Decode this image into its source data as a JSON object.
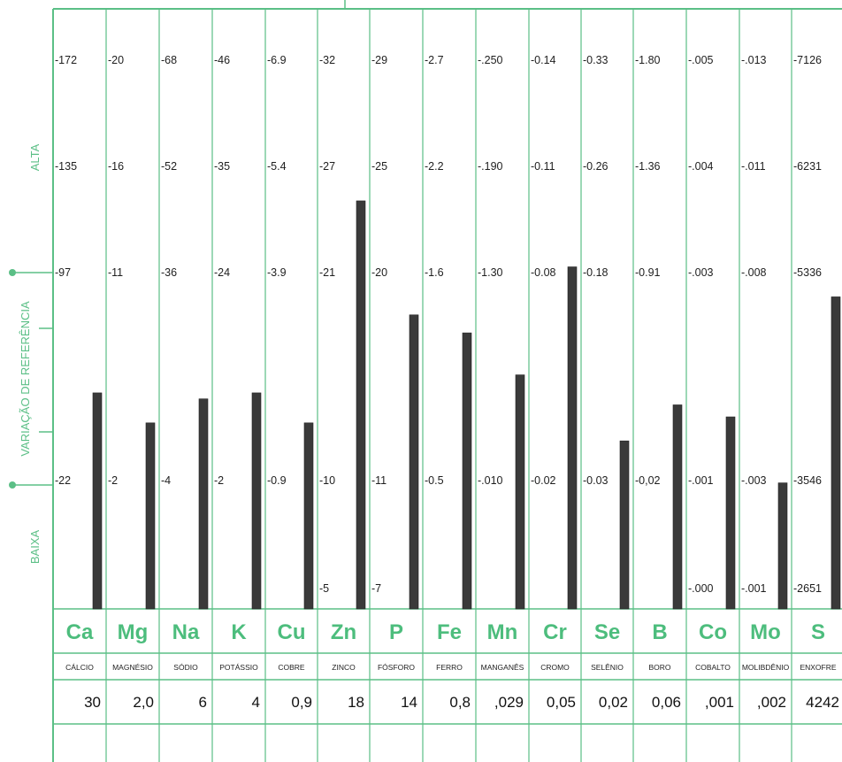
{
  "side_labels": {
    "alta": "ALTA",
    "reference": "VARIAÇÃO DE REFERÊNCIA",
    "baixa": "BAIXA"
  },
  "colors": {
    "grid_green": "#5bbf86",
    "symbol_green": "#4dbd7d",
    "bar_dark": "#3a3a3a"
  },
  "chart_data": {
    "type": "bar",
    "level_ticks": [
      "ALTA",
      "ALTA",
      "REFERÊNCIA",
      "BAIXA",
      "BAIXA"
    ],
    "categories": [
      "Ca",
      "Mg",
      "Na",
      "K",
      "Cu",
      "Zn",
      "P",
      "Fe",
      "Mn",
      "Cr",
      "Se",
      "B",
      "Co",
      "Mo",
      "S"
    ],
    "names": [
      "CÁLCIO",
      "MAGNÉSIO",
      "SÓDIO",
      "POTÁSSIO",
      "COBRE",
      "ZINCO",
      "FÓSFORO",
      "FERRO",
      "MANGANÊS",
      "CROMO",
      "SELÊNIO",
      "BORO",
      "COBALTO",
      "MOLIBDÊNIO",
      "ENXOFRE"
    ],
    "measured": [
      "30",
      "2,0",
      "6",
      "4",
      "0,9",
      "18",
      "14",
      "0,8",
      ",029",
      "0,05",
      "0,02",
      "0,06",
      ",001",
      ",002",
      "4242"
    ],
    "scale_rows": [
      [
        "-172",
        "-20",
        "-68",
        "-46",
        "-6.9",
        "-32",
        "-29",
        "-2.7",
        "-.250",
        "-0.14",
        "-0.33",
        "-1.80",
        "-.005",
        "-.013",
        "-7126"
      ],
      [
        "-135",
        "-16",
        "-52",
        "-35",
        "-5.4",
        "-27",
        "-25",
        "-2.2",
        "-.190",
        "-0.11",
        "-0.26",
        "-1.36",
        "-.004",
        "-.011",
        "-6231"
      ],
      [
        "-97",
        "-11",
        "-36",
        "-24",
        "-3.9",
        "-21",
        "-20",
        "-1.6",
        "-1.30",
        "-0.08",
        "-0.18",
        "-0.91",
        "-.003",
        "-.008",
        "-5336"
      ],
      [
        "-22",
        "-2",
        "-4",
        "-2",
        "-0.9",
        "-10",
        "-11",
        "-0.5",
        "-.010",
        "-0.02",
        "-0.03",
        "-0,02",
        "-.001",
        "-.003",
        "-3546"
      ]
    ],
    "bottom_scale": [
      {
        "col": 5,
        "label": "-5"
      },
      {
        "col": 6,
        "label": "-7"
      },
      {
        "col": 12,
        "label": "-.000"
      },
      {
        "col": 13,
        "label": "-.001"
      },
      {
        "col": 14,
        "label": "-2651"
      }
    ],
    "bar_levels": [
      0.36,
      0.31,
      0.35,
      0.36,
      0.31,
      0.68,
      0.49,
      0.46,
      0.39,
      0.57,
      0.28,
      0.34,
      0.32,
      0.21,
      0.52
    ],
    "level_range": [
      0,
      1
    ],
    "grid": true
  }
}
